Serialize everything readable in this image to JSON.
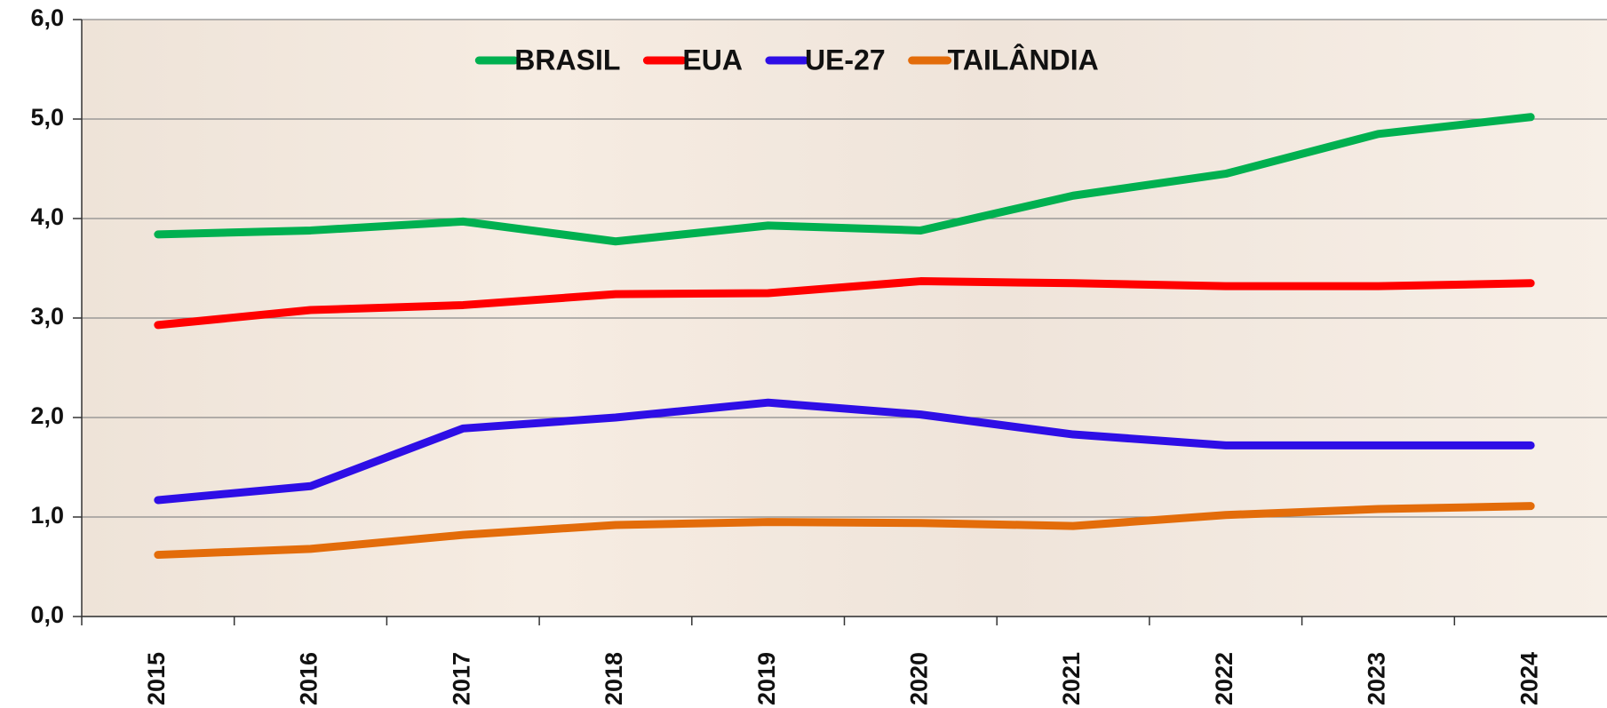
{
  "chart_data": {
    "type": "line",
    "categories": [
      "2015",
      "2016",
      "2017",
      "2018",
      "2019",
      "2020",
      "2021",
      "2022",
      "2023",
      "2024"
    ],
    "series": [
      {
        "name": "BRASIL",
        "color": "#00b050",
        "values": [
          3.84,
          3.88,
          3.97,
          3.77,
          3.93,
          3.88,
          4.23,
          4.45,
          4.85,
          5.02
        ]
      },
      {
        "name": "EUA",
        "color": "#ff0000",
        "values": [
          2.93,
          3.08,
          3.13,
          3.24,
          3.25,
          3.37,
          3.35,
          3.32,
          3.32,
          3.35
        ]
      },
      {
        "name": "UE-27",
        "color": "#2e0ee6",
        "values": [
          1.17,
          1.31,
          1.89,
          2.0,
          2.15,
          2.03,
          1.83,
          1.72,
          1.72,
          1.72
        ]
      },
      {
        "name": "TAILÂNDIA",
        "color": "#e36c0a",
        "values": [
          0.62,
          0.68,
          0.82,
          0.92,
          0.95,
          0.94,
          0.91,
          1.02,
          1.08,
          1.11
        ]
      }
    ],
    "ylim": [
      0,
      6
    ],
    "yticks": [
      {
        "value": 0,
        "label": "0,0"
      },
      {
        "value": 1,
        "label": "1,0"
      },
      {
        "value": 2,
        "label": "2,0"
      },
      {
        "value": 3,
        "label": "3,0"
      },
      {
        "value": 4,
        "label": "4,0"
      },
      {
        "value": 5,
        "label": "5,0"
      },
      {
        "value": 6,
        "label": "6,0"
      }
    ],
    "grid": true,
    "legend": "top"
  }
}
